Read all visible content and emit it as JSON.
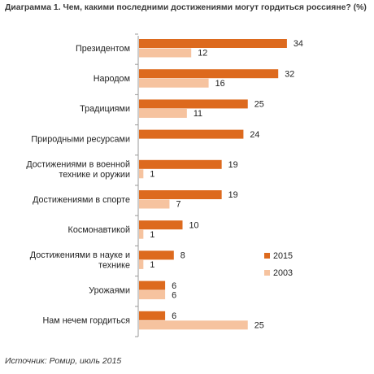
{
  "title": "Диаграмма 1. Чем, какими последними достижениями могут гордиться россияне? (%)",
  "source": "Источник: Ромир, июль 2015",
  "colors": {
    "s2015": "#dd6a1e",
    "s2003": "#f6c39f",
    "axis": "#9a9a9a",
    "text": "#222222"
  },
  "chart_data": {
    "type": "bar",
    "orientation": "horizontal",
    "title": "Диаграмма 1. Чем, какими последними достижениями могут гордиться россияне? (%)",
    "categories": [
      [
        "Президентом"
      ],
      [
        "Народом"
      ],
      [
        "Традициями"
      ],
      [
        "Природными ресурсами"
      ],
      [
        "Достижениями в военной",
        "технике и оружии"
      ],
      [
        "Достижениями в спорте"
      ],
      [
        "Космонавтикой"
      ],
      [
        "Достижениями в науке и",
        "технике"
      ],
      [
        "Урожаями"
      ],
      [
        "Нам нечем гордиться"
      ]
    ],
    "series": [
      {
        "name": "2015",
        "values": [
          34,
          32,
          25,
          24,
          19,
          19,
          10,
          8,
          6,
          6
        ]
      },
      {
        "name": "2003",
        "values": [
          12,
          16,
          11,
          null,
          1,
          7,
          1,
          1,
          6,
          25
        ]
      }
    ],
    "xlim": [
      0,
      36
    ],
    "legend_position": "right",
    "grid": false
  }
}
